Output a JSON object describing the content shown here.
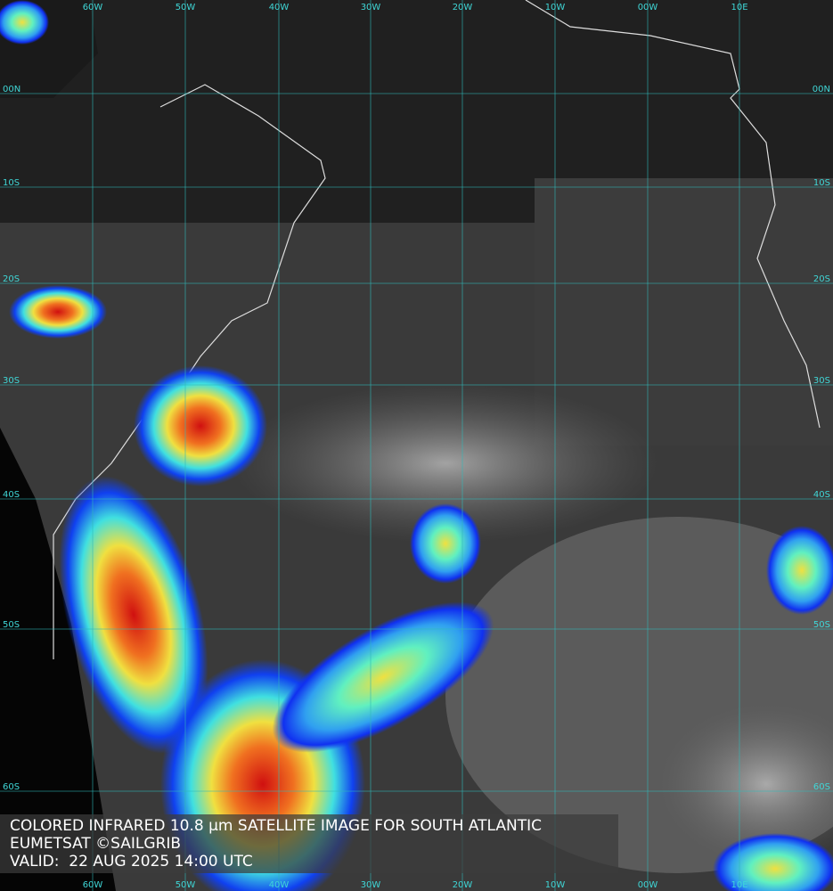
{
  "longitude_labels": [
    "60W",
    "50W",
    "40W",
    "30W",
    "20W",
    "10W",
    "00W",
    "10E"
  ],
  "latitude_labels": [
    "00N",
    "10S",
    "20S",
    "30S",
    "40S",
    "50S",
    "60S"
  ],
  "caption": [
    "COLORED INFRARED 10.8 µm SATELLITE IMAGE FOR SOUTH ATLANTIC",
    "EUMETSAT ©SAILGRIB",
    "VALID:  22 AUG 2025 14:00 UTC"
  ]
}
